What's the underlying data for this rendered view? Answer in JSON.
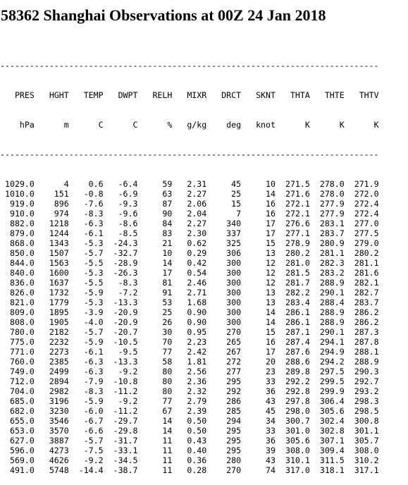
{
  "title": "58362 Shanghai Observations at 00Z 24 Jan 2018",
  "rule": "-----------------------------------------------------------------------------",
  "columns": [
    "PRES",
    "HGHT",
    "TEMP",
    "DWPT",
    "RELH",
    "MIXR",
    "DRCT",
    "SKNT",
    "THTA",
    "THTE",
    "THTV"
  ],
  "units": [
    "hPa",
    "m",
    "C",
    "C",
    "%",
    "g/kg",
    "deg",
    "knot",
    "K",
    "K",
    "K"
  ],
  "rows": [
    [
      "1029.0",
      "4",
      "0.6",
      "-6.4",
      "59",
      "2.31",
      "45",
      "10",
      "271.5",
      "278.0",
      "271.9"
    ],
    [
      "1010.0",
      "151",
      "-0.8",
      "-6.9",
      "63",
      "2.27",
      "25",
      "14",
      "271.6",
      "278.0",
      "272.0"
    ],
    [
      "919.0",
      "896",
      "-7.6",
      "-9.3",
      "87",
      "2.06",
      "15",
      "16",
      "272.1",
      "277.9",
      "272.4"
    ],
    [
      "910.0",
      "974",
      "-8.3",
      "-9.6",
      "90",
      "2.04",
      "7",
      "16",
      "272.1",
      "277.9",
      "272.4"
    ],
    [
      "882.0",
      "1218",
      "-6.3",
      "-8.6",
      "84",
      "2.27",
      "340",
      "17",
      "276.6",
      "283.1",
      "277.0"
    ],
    [
      "879.0",
      "1244",
      "-6.1",
      "-8.5",
      "83",
      "2.30",
      "337",
      "17",
      "277.1",
      "283.7",
      "277.5"
    ],
    [
      "868.0",
      "1343",
      "-5.3",
      "-24.3",
      "21",
      "0.62",
      "325",
      "15",
      "278.9",
      "280.9",
      "279.0"
    ],
    [
      "850.0",
      "1507",
      "-5.7",
      "-32.7",
      "10",
      "0.29",
      "306",
      "13",
      "280.2",
      "281.1",
      "280.2"
    ],
    [
      "844.0",
      "1563",
      "-5.5",
      "-28.9",
      "14",
      "0.42",
      "300",
      "12",
      "281.0",
      "282.3",
      "281.1"
    ],
    [
      "840.0",
      "1600",
      "-5.3",
      "-26.3",
      "17",
      "0.54",
      "300",
      "12",
      "281.5",
      "283.2",
      "281.6"
    ],
    [
      "836.0",
      "1637",
      "-5.5",
      "-8.3",
      "81",
      "2.46",
      "300",
      "12",
      "281.7",
      "288.9",
      "282.1"
    ],
    [
      "826.0",
      "1732",
      "-5.9",
      "-7.2",
      "91",
      "2.71",
      "300",
      "13",
      "282.2",
      "290.1",
      "282.7"
    ],
    [
      "821.0",
      "1779",
      "-5.3",
      "-13.3",
      "53",
      "1.68",
      "300",
      "13",
      "283.4",
      "288.4",
      "283.7"
    ],
    [
      "809.0",
      "1895",
      "-3.9",
      "-20.9",
      "25",
      "0.90",
      "300",
      "14",
      "286.1",
      "288.9",
      "286.2"
    ],
    [
      "808.0",
      "1905",
      "-4.0",
      "-20.9",
      "26",
      "0.90",
      "300",
      "14",
      "286.1",
      "288.9",
      "286.2"
    ],
    [
      "780.0",
      "2182",
      "-5.7",
      "-20.7",
      "30",
      "0.95",
      "270",
      "15",
      "287.1",
      "290.1",
      "287.3"
    ],
    [
      "775.0",
      "2232",
      "-5.9",
      "-10.5",
      "70",
      "2.23",
      "265",
      "16",
      "287.4",
      "294.1",
      "287.8"
    ],
    [
      "771.0",
      "2273",
      "-6.1",
      "-9.5",
      "77",
      "2.42",
      "267",
      "17",
      "287.6",
      "294.9",
      "288.1"
    ],
    [
      "760.0",
      "2385",
      "-6.3",
      "-13.3",
      "58",
      "1.81",
      "272",
      "20",
      "288.6",
      "294.2",
      "288.9"
    ],
    [
      "749.0",
      "2499",
      "-6.3",
      "-9.2",
      "80",
      "2.56",
      "277",
      "23",
      "289.8",
      "297.5",
      "290.3"
    ],
    [
      "712.0",
      "2894",
      "-7.9",
      "-10.8",
      "80",
      "2.36",
      "295",
      "33",
      "292.2",
      "299.5",
      "292.7"
    ],
    [
      "704.0",
      "2982",
      "-8.3",
      "-11.2",
      "80",
      "2.32",
      "292",
      "36",
      "292.8",
      "299.9",
      "293.2"
    ],
    [
      "685.0",
      "3196",
      "-5.9",
      "-9.2",
      "77",
      "2.79",
      "286",
      "43",
      "297.8",
      "306.4",
      "298.3"
    ],
    [
      "682.0",
      "3230",
      "-6.0",
      "-11.2",
      "67",
      "2.39",
      "285",
      "45",
      "298.0",
      "305.6",
      "298.5"
    ],
    [
      "655.0",
      "3546",
      "-6.7",
      "-29.7",
      "14",
      "0.50",
      "294",
      "34",
      "300.7",
      "302.4",
      "300.8"
    ],
    [
      "653.0",
      "3570",
      "-6.6",
      "-29.8",
      "14",
      "0.50",
      "295",
      "33",
      "301.0",
      "302.8",
      "301.1"
    ],
    [
      "627.0",
      "3887",
      "-5.7",
      "-31.7",
      "11",
      "0.43",
      "295",
      "36",
      "305.6",
      "307.1",
      "305.7"
    ],
    [
      "596.0",
      "4273",
      "-7.5",
      "-33.1",
      "11",
      "0.40",
      "295",
      "39",
      "308.0",
      "309.4",
      "308.0"
    ],
    [
      "569.0",
      "4626",
      "-9.2",
      "-34.5",
      "11",
      "0.36",
      "280",
      "43",
      "310.1",
      "311.5",
      "310.2"
    ],
    [
      "491.0",
      "5748",
      "-14.4",
      "-38.7",
      "11",
      "0.28",
      "270",
      "74",
      "317.0",
      "318.1",
      "317.1"
    ]
  ]
}
